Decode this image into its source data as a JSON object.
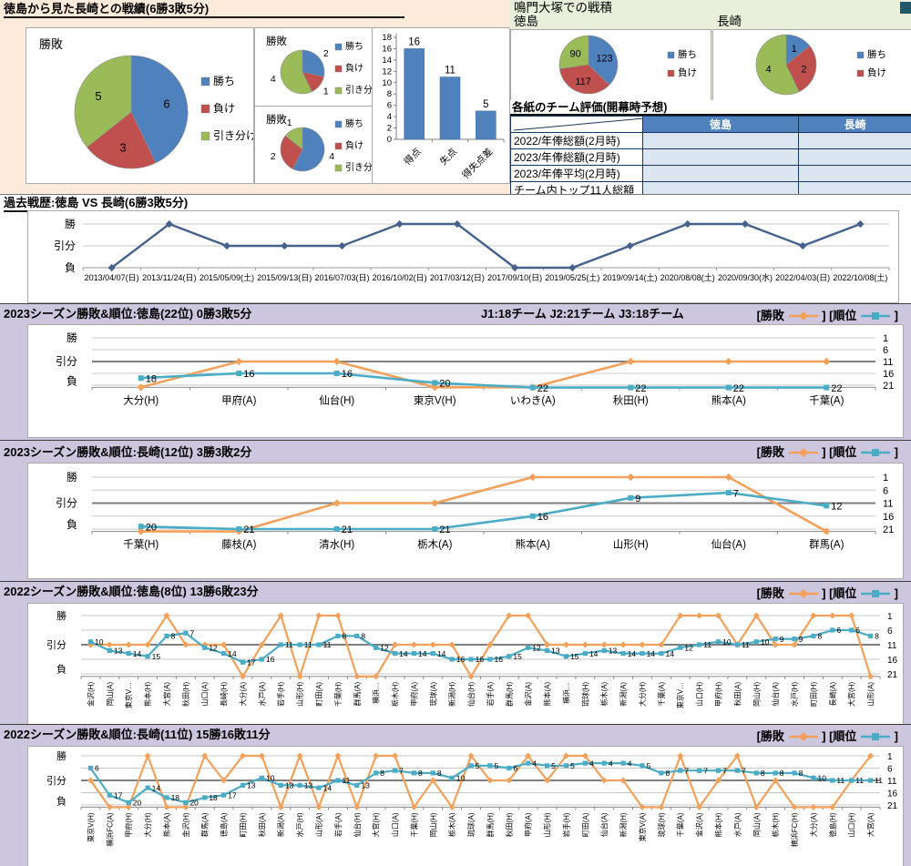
{
  "colors": {
    "win_blue": "#4F81BD",
    "lose_red": "#C0504D",
    "draw_green": "#9BBB59",
    "result_orange": "#F2A05A",
    "rank_teal": "#4BACC6",
    "history_line": "#46628C",
    "table_header": "#4F81BD",
    "table_cell": "#DCE6F1"
  },
  "sections": {
    "s1": {
      "title": "徳島から見た長崎との戦績(6勝3敗5分)"
    },
    "s2": {
      "title": "鳴門大塚での戦積",
      "team_left": "徳島",
      "team_right": "長崎"
    },
    "s3": {
      "title": "過去戦歴:徳島 VS 長崎(6勝3敗5分)"
    },
    "s4": {
      "title": "2023シーズン勝敗&順位:徳島(22位) 0勝3敗5分",
      "info": "J1:18チーム  J2:21チーム  J3:18チーム"
    },
    "s5": {
      "title": "2023シーズン勝敗&順位:長崎(12位) 3勝3敗2分"
    },
    "s6": {
      "title": "2022シーズン勝敗&順位:徳島(8位) 13勝6敗23分"
    },
    "s7": {
      "title": "2022シーズン勝敗&順位:長崎(11位) 15勝16敗11分"
    },
    "legend": {
      "result": "勝敗",
      "rank": "順位",
      "open": "[",
      "close": "]"
    }
  },
  "table": {
    "title": "各紙のチーム評価(開幕時予想)",
    "col_headers": [
      "徳島",
      "長崎"
    ],
    "row_headers": [
      "2022/年俸総額(2月時)",
      "2023/年俸総額(2月時)",
      "2023/年俸平均(2月時)",
      "チーム内トップ11人総額"
    ],
    "cells": [
      [
        "",
        ""
      ],
      [
        "",
        ""
      ],
      [
        "",
        ""
      ],
      [
        "",
        ""
      ]
    ]
  },
  "chart_data": [
    {
      "id": "record-pie-main",
      "type": "pie",
      "title": "勝敗",
      "labels": [
        "勝ち",
        "負け",
        "引き分け"
      ],
      "values": [
        6,
        3,
        5
      ],
      "legend": [
        "勝ち",
        "負け",
        "引き分け"
      ],
      "legend_position": "right"
    },
    {
      "id": "record-pie-sub1",
      "type": "pie",
      "title": "勝敗",
      "labels": [
        "勝ち",
        "負け",
        "引き分け"
      ],
      "values": [
        2,
        1,
        4
      ],
      "legend": [
        "勝ち",
        "負け",
        "引き分け"
      ],
      "legend_position": "right"
    },
    {
      "id": "record-pie-sub2",
      "type": "pie",
      "title": "勝敗",
      "labels": [
        "勝ち",
        "負け",
        "引き分け"
      ],
      "values": [
        4,
        2,
        1
      ],
      "legend": [
        "勝ち",
        "負け",
        "引き分け"
      ],
      "legend_position": "right"
    },
    {
      "id": "goals-bar",
      "type": "bar",
      "categories": [
        "得点",
        "失点",
        "得失点差"
      ],
      "values": [
        16,
        11,
        5
      ],
      "title": "",
      "xlabel": "",
      "ylabel": "",
      "ylim": [
        0,
        18
      ],
      "ystep": 2
    },
    {
      "id": "naruto-pie-tokushima",
      "type": "pie",
      "title": "徳島",
      "labels": [
        "勝ち",
        "負け",
        "引き分け"
      ],
      "values": [
        123,
        117,
        90
      ],
      "legend": [
        "勝ち",
        "負け"
      ],
      "legend_position": "right"
    },
    {
      "id": "naruto-pie-nagasaki",
      "type": "pie",
      "title": "長崎",
      "labels": [
        "勝ち",
        "負け",
        "引き分け"
      ],
      "values": [
        1,
        2,
        4
      ],
      "legend": [
        "勝ち",
        "負け"
      ],
      "legend_position": "right"
    },
    {
      "id": "history-line",
      "type": "line",
      "title": "過去戦歴:徳島 VS 長崎(6勝3敗5分)",
      "y_levels": [
        "勝",
        "引分",
        "負"
      ],
      "x": [
        "2013/04/07(日)",
        "2013/11/24(日)",
        "2015/05/09(土)",
        "2015/09/13(日)",
        "2016/07/03(日)",
        "2016/10/02(日)",
        "2017/03/12(日)",
        "2017/09/10(日)",
        "2019/05/25(土)",
        "2019/09/14(土)",
        "2020/08/08(土)",
        "2020/09/30(水)",
        "2022/04/03(日)",
        "2022/10/08(土)"
      ],
      "results": [
        "L",
        "W",
        "D",
        "D",
        "D",
        "W",
        "W",
        "L",
        "L",
        "D",
        "W",
        "W",
        "D",
        "W"
      ]
    },
    {
      "id": "rank-2023-tokushima",
      "type": "line",
      "title": "2023シーズン勝敗&順位:徳島(22位) 0勝3敗5分",
      "y_levels": [
        "勝",
        "引分",
        "負"
      ],
      "right_axis_ticks": [
        1,
        6,
        11,
        16,
        21
      ],
      "categories": [
        "大分(H)",
        "甲府(A)",
        "仙台(H)",
        "東京V(H)",
        "いわき(A)",
        "秋田(H)",
        "熊本(A)",
        "千葉(A)"
      ],
      "series": [
        {
          "name": "勝敗",
          "values": [
            "L",
            "D",
            "D",
            "L",
            "L",
            "D",
            "D",
            "D"
          ]
        },
        {
          "name": "順位",
          "values": [
            18,
            16,
            16,
            20,
            22,
            22,
            22,
            22
          ]
        }
      ]
    },
    {
      "id": "rank-2023-nagasaki",
      "type": "line",
      "title": "2023シーズン勝敗&順位:長崎(12位) 3勝3敗2分",
      "y_levels": [
        "勝",
        "引分",
        "負"
      ],
      "right_axis_ticks": [
        1,
        6,
        11,
        16,
        21
      ],
      "categories": [
        "千葉(H)",
        "藤枝(A)",
        "清水(H)",
        "栃木(A)",
        "熊本(A)",
        "山形(H)",
        "仙台(A)",
        "群馬(A)"
      ],
      "series": [
        {
          "name": "勝敗",
          "values": [
            "L",
            "L",
            "D",
            "D",
            "W",
            "W",
            "W",
            "L"
          ]
        },
        {
          "name": "順位",
          "values": [
            20,
            21,
            21,
            21,
            16,
            9,
            7,
            12
          ]
        }
      ]
    },
    {
      "id": "rank-2022-tokushima",
      "type": "line",
      "title": "2022シーズン勝敗&順位:徳島(8位) 13勝6敗23分",
      "y_levels": [
        "勝",
        "引分",
        "負"
      ],
      "right_axis_ticks": [
        1,
        6,
        11,
        16,
        21
      ],
      "categories": [
        "金沢(H)",
        "岡山(A)",
        "東京V…",
        "熊本(H)",
        "大宮(A)",
        "秋田(H)",
        "山口(A)",
        "長崎(H)",
        "大分(A)",
        "水戸(A)",
        "岩手(H)",
        "山形(H)",
        "町田(A)",
        "千葉(H)",
        "群馬(A)",
        "横浜…",
        "栃木(H)",
        "甲府(A)",
        "琉球(A)",
        "新潟(H)",
        "仙台(H)",
        "岩手(A)",
        "群馬(H)",
        "金沢(A)",
        "熊本(A)",
        "横浜…",
        "琉球(H)",
        "栃木(A)",
        "新潟(A)",
        "大分(H)",
        "千葉(A)",
        "東京V…",
        "山口(H)",
        "甲府(H)",
        "秋田(A)",
        "岡山(H)",
        "仙台(A)",
        "水戸(H)",
        "町田(H)",
        "長崎(A)",
        "大宮(H)",
        "山形(A)"
      ],
      "series": [
        {
          "name": "勝敗",
          "values": [
            "D",
            "D",
            "D",
            "D",
            "W",
            "D",
            "D",
            "D",
            "L",
            "D",
            "W",
            "L",
            "W",
            "W",
            "L",
            "L",
            "D",
            "D",
            "D",
            "D",
            "L",
            "D",
            "W",
            "W",
            "D",
            "D",
            "D",
            "D",
            "D",
            "D",
            "D",
            "W",
            "W",
            "W",
            "D",
            "W",
            "D",
            "D",
            "W",
            "W",
            "W",
            "L"
          ]
        },
        {
          "name": "順位",
          "values": [
            10,
            13,
            14,
            15,
            8,
            7,
            12,
            14,
            17,
            16,
            11,
            11,
            11,
            8,
            8,
            12,
            14,
            14,
            14,
            16,
            16,
            16,
            15,
            12,
            13,
            15,
            14,
            13,
            14,
            14,
            14,
            12,
            11,
            10,
            11,
            10,
            9,
            9,
            8,
            6,
            6,
            8
          ]
        }
      ]
    },
    {
      "id": "rank-2022-nagasaki",
      "type": "line",
      "title": "2022シーズン勝敗&順位:長崎(11位) 15勝16敗11分",
      "y_levels": [
        "勝",
        "引分",
        "負"
      ],
      "right_axis_ticks": [
        1,
        6,
        11,
        16,
        21
      ],
      "categories": [
        "東京V(H)",
        "横浜FC(A)",
        "甲府(H)",
        "大分(H)",
        "熊本(A)",
        "金沢(H)",
        "群馬(A)",
        "徳島(A)",
        "町田(H)",
        "秋田(A)",
        "新潟(A)",
        "水戸(H)",
        "山形(A)",
        "岩手(A)",
        "仙台(H)",
        "大宮(H)",
        "山口(A)",
        "千葉(H)",
        "岡山(H)",
        "栃木(A)",
        "琉球(A)",
        "群馬(H)",
        "秋田(H)",
        "甲府(A)",
        "山形(H)",
        "岩手(H)",
        "町田(A)",
        "仙台(A)",
        "新潟(H)",
        "東京V(A)",
        "琉球(H)",
        "千葉(A)",
        "金沢(A)",
        "熊本(H)",
        "水戸(A)",
        "岡山(A)",
        "栃木(H)",
        "横浜FC(H)",
        "大分(A)",
        "徳島(H)",
        "山口(H)",
        "大宮(A)"
      ],
      "series": [
        {
          "name": "勝敗",
          "values": [
            "D",
            "L",
            "L",
            "W",
            "L",
            "L",
            "W",
            "D",
            "W",
            "W",
            "L",
            "W",
            "L",
            "W",
            "L",
            "W",
            "W",
            "L",
            "D",
            "L",
            "W",
            "D",
            "D",
            "W",
            "D",
            "W",
            "W",
            "D",
            "D",
            "L",
            "L",
            "W",
            "L",
            "D",
            "W",
            "L",
            "D",
            "L",
            "L",
            "L",
            "D",
            "W"
          ]
        },
        {
          "name": "順位",
          "values": [
            6,
            17,
            20,
            14,
            18,
            20,
            18,
            17,
            13,
            10,
            13,
            13,
            14,
            11,
            13,
            8,
            7,
            8,
            8,
            10,
            5,
            5,
            6,
            4,
            5,
            5,
            4,
            4,
            4,
            5,
            8,
            7,
            7,
            7,
            7,
            8,
            8,
            8,
            10,
            11,
            11,
            11
          ]
        }
      ]
    }
  ]
}
